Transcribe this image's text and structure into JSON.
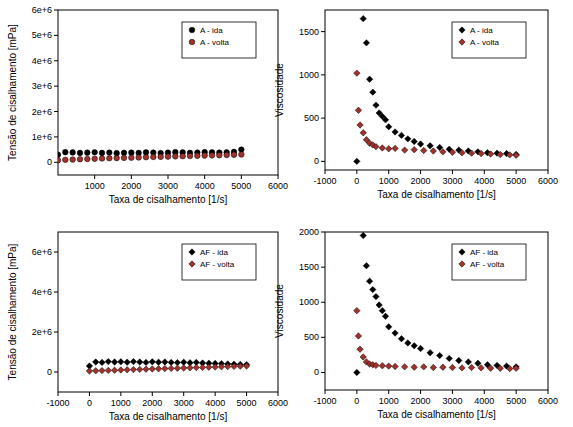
{
  "chart_data": [
    {
      "type": "scatter",
      "x_label": "Taxa de cisalhamento [1/s]",
      "y_label": "Tensão de cisalhamento [mPa]",
      "xlim": [
        0,
        6000
      ],
      "xticks": [
        1000,
        2000,
        3000,
        4000,
        5000,
        6000
      ],
      "ylim": [
        -500000,
        6000000
      ],
      "yticks": [
        0,
        {
          "value": 1000000,
          "label": "1e+6"
        },
        {
          "value": 2000000,
          "label": "2e+6"
        },
        {
          "value": 3000000,
          "label": "3e+6"
        },
        {
          "value": 4000000,
          "label": "4e+6"
        },
        {
          "value": 5000000,
          "label": "5e+6"
        },
        {
          "value": 6000000,
          "label": "6e+6"
        }
      ],
      "legend": "upper right",
      "series": [
        {
          "name": "A - ida",
          "color": "#000000",
          "marker": "circle",
          "x": [
            0,
            200,
            400,
            600,
            800,
            1000,
            1200,
            1400,
            1600,
            1800,
            2000,
            2200,
            2400,
            2600,
            2800,
            3000,
            3200,
            3400,
            3600,
            3800,
            4000,
            4200,
            4400,
            4600,
            4800,
            5000
          ],
          "values": [
            300000,
            400000,
            390000,
            370000,
            380000,
            395000,
            370000,
            385000,
            360000,
            375000,
            380000,
            370000,
            390000,
            385000,
            365000,
            380000,
            400000,
            390000,
            375000,
            385000,
            400000,
            390000,
            380000,
            395000,
            410000,
            500000
          ]
        },
        {
          "name": "A - volta",
          "color": "#a0322d",
          "marker": "circle",
          "x": [
            0,
            200,
            400,
            600,
            800,
            1000,
            1200,
            1400,
            1600,
            1800,
            2000,
            2200,
            2400,
            2600,
            2800,
            3000,
            3200,
            3400,
            3600,
            3800,
            4000,
            4200,
            4400,
            4600,
            4800,
            5000
          ],
          "values": [
            80000,
            100000,
            110000,
            120000,
            130000,
            140000,
            150000,
            160000,
            165000,
            175000,
            180000,
            190000,
            200000,
            210000,
            215000,
            225000,
            235000,
            240000,
            250000,
            255000,
            265000,
            275000,
            280000,
            290000,
            300000,
            310000
          ]
        }
      ]
    },
    {
      "type": "scatter",
      "x_label": "Taxa de cisalhamento [1/s]",
      "y_label": "Viscosidade",
      "xlim": [
        -1000,
        6000
      ],
      "xticks": [
        -1000,
        0,
        1000,
        2000,
        3000,
        4000,
        5000,
        6000
      ],
      "ylim": [
        -100,
        1750
      ],
      "yticks": [
        0,
        500,
        1000,
        1500
      ],
      "legend": "upper right",
      "series": [
        {
          "name": "A - ida",
          "color": "#000000",
          "marker": "diamond",
          "x": [
            0,
            200,
            300,
            400,
            500,
            600,
            700,
            800,
            900,
            1000,
            1200,
            1400,
            1600,
            1800,
            2000,
            2300,
            2600,
            2900,
            3200,
            3500,
            3800,
            4100,
            4400,
            4700,
            5000
          ],
          "values": [
            0,
            1650,
            1370,
            950,
            800,
            650,
            560,
            520,
            480,
            400,
            340,
            300,
            260,
            230,
            200,
            180,
            160,
            140,
            130,
            120,
            110,
            100,
            95,
            90,
            80
          ]
        },
        {
          "name": "A - volta",
          "color": "#a0322d",
          "marker": "diamond",
          "x": [
            0,
            50,
            100,
            200,
            300,
            400,
            500,
            600,
            800,
            1000,
            1200,
            1500,
            1800,
            2100,
            2400,
            2700,
            3000,
            3300,
            3600,
            3900,
            4200,
            4500,
            4800,
            5000
          ],
          "values": [
            1020,
            590,
            420,
            330,
            250,
            210,
            190,
            170,
            155,
            145,
            150,
            130,
            135,
            125,
            120,
            110,
            105,
            100,
            95,
            90,
            85,
            80,
            75,
            70
          ]
        }
      ]
    },
    {
      "type": "scatter",
      "x_label": "Taxa de cisalhamento [1/s]",
      "y_label": "Tensão de cisalhamento [mPa]",
      "xlim": [
        -1000,
        6000
      ],
      "xticks": [
        -1000,
        0,
        1000,
        2000,
        3000,
        4000,
        5000,
        6000
      ],
      "ylim": [
        -1000000,
        7000000
      ],
      "yticks": [
        0,
        {
          "value": 2000000,
          "label": "2e+6"
        },
        {
          "value": 4000000,
          "label": "4e+6"
        },
        {
          "value": 6000000,
          "label": "6e+6"
        }
      ],
      "legend": "upper right",
      "series": [
        {
          "name": "AF - ida",
          "color": "#000000",
          "marker": "diamond",
          "x": [
            0,
            200,
            400,
            600,
            800,
            1000,
            1200,
            1400,
            1600,
            1800,
            2000,
            2200,
            2400,
            2600,
            2800,
            3000,
            3200,
            3400,
            3600,
            3800,
            4000,
            4200,
            4400,
            4600,
            4800,
            5000
          ],
          "values": [
            300000,
            500000,
            480000,
            520000,
            500000,
            510000,
            490000,
            520000,
            500000,
            480000,
            510000,
            490000,
            500000,
            480000,
            470000,
            490000,
            460000,
            480000,
            450000,
            440000,
            430000,
            420000,
            400000,
            390000,
            380000,
            370000
          ]
        },
        {
          "name": "AF - volta",
          "color": "#a0322d",
          "marker": "diamond",
          "x": [
            0,
            200,
            400,
            600,
            800,
            1000,
            1200,
            1400,
            1600,
            1800,
            2000,
            2200,
            2400,
            2600,
            2800,
            3000,
            3200,
            3400,
            3600,
            3800,
            4000,
            4200,
            4400,
            4600,
            4800,
            5000
          ],
          "values": [
            50000,
            60000,
            70000,
            80000,
            90000,
            100000,
            110000,
            120000,
            130000,
            140000,
            150000,
            160000,
            170000,
            180000,
            190000,
            200000,
            210000,
            220000,
            230000,
            240000,
            250000,
            260000,
            270000,
            280000,
            290000,
            300000
          ]
        }
      ]
    },
    {
      "type": "scatter",
      "x_label": "Taxa de cisalhamento [1/s]",
      "y_label": "Viscosidade",
      "xlim": [
        -1000,
        6000
      ],
      "xticks": [
        -1000,
        0,
        1000,
        2000,
        3000,
        4000,
        5000,
        6000
      ],
      "ylim": [
        -250,
        2000
      ],
      "yticks": [
        0,
        500,
        1000,
        1500,
        2000
      ],
      "legend": "upper right",
      "series": [
        {
          "name": "AF - ida",
          "color": "#000000",
          "marker": "diamond",
          "x": [
            0,
            200,
            300,
            400,
            500,
            600,
            700,
            800,
            900,
            1000,
            1200,
            1400,
            1600,
            1800,
            2000,
            2300,
            2600,
            2900,
            3200,
            3500,
            3800,
            4100,
            4400,
            4700,
            5000
          ],
          "values": [
            0,
            1950,
            1520,
            1300,
            1180,
            1080,
            960,
            880,
            800,
            650,
            560,
            480,
            420,
            380,
            340,
            280,
            240,
            200,
            170,
            150,
            130,
            110,
            100,
            90,
            80
          ]
        },
        {
          "name": "AF - volta",
          "color": "#a0322d",
          "marker": "diamond",
          "x": [
            0,
            50,
            100,
            200,
            300,
            400,
            500,
            600,
            800,
            1000,
            1200,
            1500,
            1800,
            2100,
            2400,
            2700,
            3000,
            3300,
            3600,
            3900,
            4200,
            4500,
            4800,
            5000
          ],
          "values": [
            880,
            520,
            330,
            220,
            150,
            120,
            110,
            100,
            95,
            90,
            85,
            80,
            75,
            80,
            70,
            75,
            70,
            65,
            70,
            65,
            60,
            60,
            55,
            60
          ]
        }
      ]
    }
  ]
}
